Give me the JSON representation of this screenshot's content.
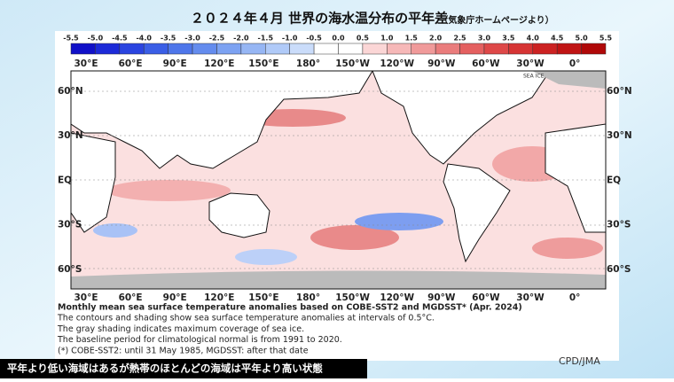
{
  "header": {
    "title": "２０２４年４月 世界の海水温分布の平年差",
    "source": "（気象庁ホームページより）"
  },
  "colorbar": {
    "labels": [
      "-5.5",
      "-5.0",
      "-4.5",
      "-4.0",
      "-3.5",
      "-3.0",
      "-2.5",
      "-2.0",
      "-1.5",
      "-1.0",
      "-0.5",
      "0.0",
      "0.5",
      "1.0",
      "1.5",
      "2.0",
      "2.5",
      "3.0",
      "3.5",
      "4.0",
      "4.5",
      "5.0",
      "5.5"
    ],
    "colors": [
      "#1010c8",
      "#1c2ad8",
      "#2a44e0",
      "#3a5ee6",
      "#4e76ea",
      "#648cee",
      "#7ca2f2",
      "#96b6f4",
      "#b0caf8",
      "#cadcfa",
      "#ffffff",
      "#ffffff",
      "#fbd6d6",
      "#f6b8b8",
      "#f09a9a",
      "#ea7c7c",
      "#e46060",
      "#de4848",
      "#d63434",
      "#cc2222",
      "#c01414",
      "#b00808"
    ]
  },
  "map": {
    "lon_labels": [
      "30°E",
      "60°E",
      "90°E",
      "120°E",
      "150°E",
      "180°",
      "150°W",
      "120°W",
      "90°W",
      "60°W",
      "30°W",
      "0°"
    ],
    "lat_labels": [
      "60°N",
      "30°N",
      "EQ",
      "30°S",
      "60°S"
    ],
    "sea_ice_label": "SEA ICE"
  },
  "caption": [
    "Monthly mean sea surface temperature anomalies based on COBE-SST2 and MGDSST* (Apr. 2024)",
    "The contours and shading show sea surface temperature anomalies at intervals of 0.5°C.",
    "The gray shading indicates maximum coverage of sea ice.",
    "The baseline period for climatological normal is from 1991 to 2020.",
    "(*) COBE-SST2: until 31 May 1985, MGDSST: after that date"
  ],
  "credit": "CPD/JMA",
  "footer": "平年より低い海域はあるが熱帯のほとんどの海域は平年より高い状態"
}
